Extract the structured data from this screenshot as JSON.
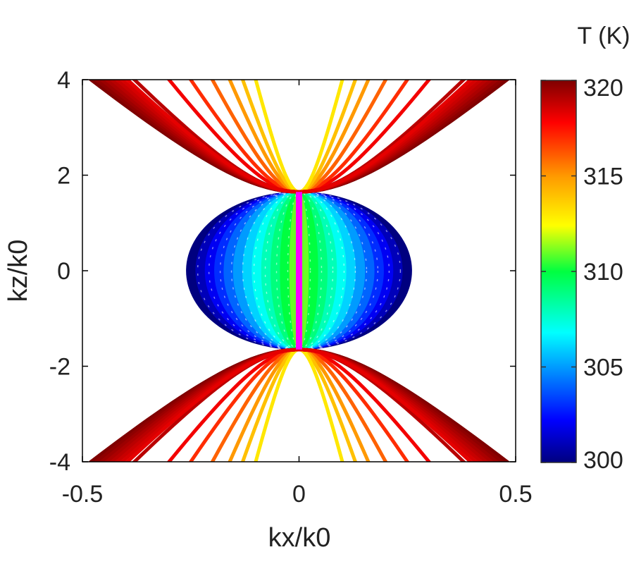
{
  "chart_data": {
    "type": "line",
    "title": "",
    "xlabel": "kx/k0",
    "ylabel": "kz/k0",
    "xlim": [
      -0.5,
      0.5
    ],
    "ylim": [
      -4,
      4
    ],
    "x_ticks": [
      "-0.5",
      "0",
      "0.5"
    ],
    "x_tick_values": [
      -0.5,
      0,
      0.5
    ],
    "y_ticks": [
      "4",
      "2",
      "0",
      "-2",
      "-4"
    ],
    "y_tick_values": [
      4,
      2,
      0,
      -2,
      -4
    ],
    "colorbar": {
      "title": "T (K)",
      "range": [
        300,
        320
      ],
      "ticks": [
        "320",
        "315",
        "310",
        "305",
        "300"
      ],
      "tick_values": [
        320,
        315,
        310,
        305,
        300
      ],
      "colormap": "jet"
    },
    "isofrequency_contours": {
      "temperatures_K": [
        300,
        301,
        302,
        303,
        304,
        305,
        306,
        307,
        308,
        309,
        310,
        311,
        312,
        313,
        314,
        315,
        316,
        317,
        318,
        319,
        320
      ],
      "vertex_kz_over_k0": 1.65,
      "ellipse": {
        "kx_semi_axis": 0.26,
        "kz_semi_axis": 1.65,
        "temperature_range_K": [
          300,
          312
        ]
      },
      "hyperbolic": {
        "temperature_range_K": [
          312,
          320
        ],
        "kx_at_kz4": [
          0.05,
          0.075,
          0.1,
          0.13,
          0.16,
          0.2,
          0.25,
          0.3,
          0.38,
          0.48
        ]
      },
      "transition": {
        "temperature_K": 312,
        "kx": 0,
        "color": "#ff00ff"
      }
    },
    "grid": false,
    "legend": "colorbar-right"
  }
}
